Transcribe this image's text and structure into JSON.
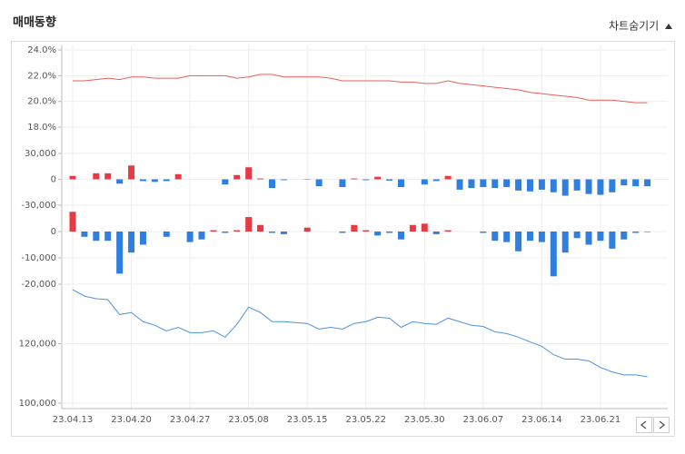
{
  "header": {
    "title": "매매동향",
    "toggle": "차트숨기기"
  },
  "chart_data": [
    {
      "type": "line",
      "color": "#e8605a",
      "values": [
        21.6,
        21.6,
        21.7,
        21.8,
        21.7,
        21.9,
        21.9,
        21.8,
        21.8,
        21.8,
        22.0,
        22.0,
        22.0,
        22.0,
        21.8,
        21.9,
        22.1,
        22.1,
        21.9,
        21.9,
        21.9,
        21.9,
        21.8,
        21.6,
        21.6,
        21.6,
        21.6,
        21.6,
        21.5,
        21.5,
        21.4,
        21.4,
        21.6,
        21.4,
        21.3,
        21.2,
        21.1,
        21.0,
        20.9,
        20.7,
        20.6,
        20.5,
        20.4,
        20.3,
        20.1,
        20.1,
        20.1,
        20.0,
        19.9,
        19.9
      ],
      "ylim": [
        18,
        24
      ],
      "yticks": [
        {
          "value": 24,
          "label": "24.0%"
        },
        {
          "value": 22,
          "label": "22.0%"
        },
        {
          "value": 20,
          "label": "20.0%"
        },
        {
          "value": 18,
          "label": "18.0%"
        }
      ],
      "grid": true
    },
    {
      "type": "bar",
      "positive_color": "#e83a45",
      "negative_color": "#2f7fe0",
      "values": [
        4000,
        0,
        7000,
        7000,
        -5000,
        16000,
        -2000,
        -3000,
        -2000,
        6000,
        0,
        0,
        0,
        -6000,
        5000,
        14000,
        1000,
        -10000,
        -1000,
        0,
        -500,
        -8000,
        0,
        -9000,
        1000,
        -1000,
        3000,
        -1500,
        -9000,
        0,
        -6000,
        -2000,
        4000,
        -12000,
        -10000,
        -9000,
        -10000,
        -9000,
        -13000,
        -14000,
        -12000,
        -15000,
        -19000,
        -13000,
        -17000,
        -18000,
        -15000,
        -7000,
        -8000,
        -8000
      ],
      "ylim": [
        -30000,
        30000
      ],
      "yticks": [
        {
          "value": 30000,
          "label": "30,000"
        },
        0,
        {
          "value": -30000,
          "label": "-30,000"
        }
      ],
      "grid": true
    },
    {
      "type": "bar",
      "positive_color": "#e83a45",
      "negative_color": "#2f7fe0",
      "values": [
        7500,
        -2000,
        -3500,
        -3500,
        -16000,
        -8000,
        -5000,
        0,
        -2000,
        0,
        -4000,
        -3000,
        500,
        -500,
        500,
        5500,
        2500,
        -500,
        -1000,
        0,
        1500,
        0,
        0,
        -500,
        2500,
        500,
        -1500,
        -500,
        -3000,
        2500,
        3000,
        -1000,
        500,
        0,
        0,
        -500,
        -3500,
        -4000,
        -7500,
        -3500,
        -4000,
        -17000,
        -8000,
        -2500,
        -5000,
        -3500,
        -6500,
        -3000,
        -500,
        -200
      ],
      "ylim": [
        -20000,
        10000
      ],
      "yticks": [
        0,
        {
          "value": -10000,
          "label": "-10,000"
        },
        {
          "value": -20000,
          "label": "-20,000"
        }
      ],
      "grid": true
    },
    {
      "type": "line",
      "color": "#4b93dd",
      "categories": [
        "23.04.13",
        null,
        null,
        null,
        null,
        "23.04.20",
        null,
        null,
        null,
        null,
        "23.04.27",
        null,
        null,
        null,
        null,
        "23.05.08",
        null,
        null,
        null,
        null,
        "23.05.15",
        null,
        null,
        null,
        null,
        "23.05.22",
        null,
        null,
        null,
        null,
        "23.05.30",
        null,
        null,
        null,
        null,
        "23.06.07",
        null,
        null,
        null,
        null,
        "23.06.14",
        null,
        null,
        null,
        null,
        "23.06.21",
        null,
        null,
        null,
        null
      ],
      "values": [
        138200,
        136000,
        135100,
        134800,
        129800,
        130500,
        127400,
        126200,
        124300,
        125500,
        123700,
        123700,
        124300,
        122200,
        126500,
        132300,
        130500,
        127400,
        127400,
        127100,
        126800,
        124900,
        125500,
        124900,
        126800,
        127400,
        128900,
        128600,
        125500,
        127400,
        126800,
        126500,
        128600,
        127400,
        126200,
        125800,
        124000,
        123400,
        122200,
        120600,
        119100,
        116300,
        114800,
        114800,
        114200,
        112000,
        110500,
        109500,
        109500,
        108900
      ],
      "ylim": [
        100000,
        140000
      ],
      "yticks": [
        {
          "value": 120000,
          "label": "120,000"
        },
        {
          "value": 100000,
          "label": "100,000"
        }
      ],
      "grid": true
    }
  ]
}
